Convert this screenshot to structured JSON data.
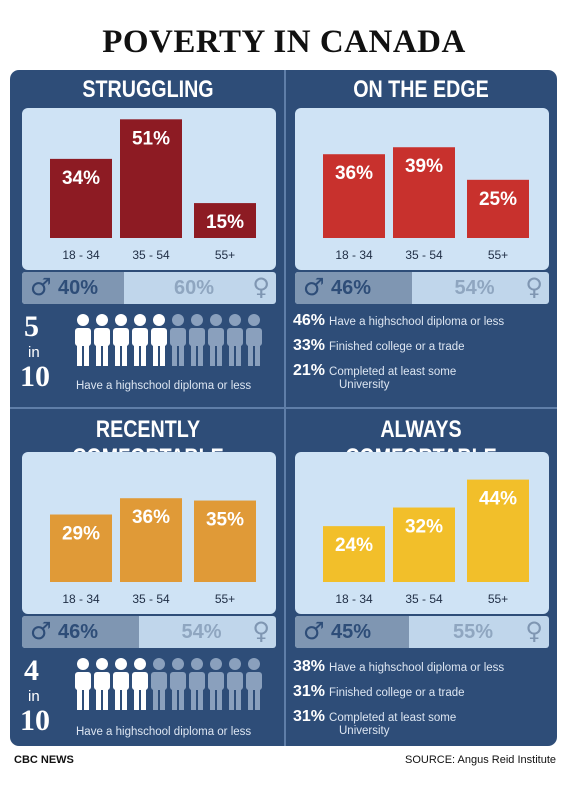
{
  "title": "POVERTY IN CANADA",
  "footer": {
    "left": "CBC NEWS",
    "right": "SOURCE: Angus Reid Institute"
  },
  "panels": [
    {
      "title": "STRUGGLING",
      "bar_color": "#8d1b23",
      "gender": {
        "male_pct": 40,
        "female_pct": 60,
        "male_label": "40%",
        "female_label": "60%"
      },
      "people": {
        "big": "5",
        "in": "in",
        "ten": "10",
        "filled": 5,
        "text": "Have a highschool diploma or less"
      }
    },
    {
      "title": "ON THE EDGE",
      "bar_color": "#c8312d",
      "gender": {
        "male_pct": 46,
        "female_pct": 54,
        "male_label": "46%",
        "female_label": "54%"
      },
      "education": [
        {
          "pct": "46%",
          "label": "Have a highschool diploma or less"
        },
        {
          "pct": "33%",
          "label": "Finished college or a trade"
        },
        {
          "pct": "21%",
          "label": "Completed at least some",
          "label2": "University"
        }
      ]
    },
    {
      "title": "RECENTLY COMFORTABLE",
      "bar_color": "#e09a37",
      "gender": {
        "male_pct": 46,
        "female_pct": 54,
        "male_label": "46%",
        "female_label": "54%"
      },
      "people": {
        "big": "4",
        "in": "in",
        "ten": "10",
        "filled": 4,
        "text": "Have a highschool diploma or less"
      }
    },
    {
      "title": "ALWAYS COMFORTABLE",
      "bar_color": "#f2bf2a",
      "gender": {
        "male_pct": 45,
        "female_pct": 55,
        "male_label": "45%",
        "female_label": "55%"
      },
      "education": [
        {
          "pct": "38%",
          "label": "Have a highschool diploma or less"
        },
        {
          "pct": "31%",
          "label": "Finished college or a trade"
        },
        {
          "pct": "31%",
          "label": "Completed at least some",
          "label2": "University"
        }
      ]
    }
  ],
  "chart_data": [
    {
      "type": "bar",
      "title": "STRUGGLING",
      "categories": [
        "18 - 34",
        "35 - 54",
        "55+"
      ],
      "values": [
        34,
        51,
        15
      ],
      "labels": [
        "34%",
        "51%",
        "15%"
      ],
      "ylim": [
        0,
        55
      ]
    },
    {
      "type": "bar",
      "title": "ON THE EDGE",
      "categories": [
        "18 - 34",
        "35 - 54",
        "55+"
      ],
      "values": [
        36,
        39,
        25
      ],
      "labels": [
        "36%",
        "39%",
        "25%"
      ],
      "ylim": [
        0,
        55
      ]
    },
    {
      "type": "bar",
      "title": "RECENTLY COMFORTABLE",
      "categories": [
        "18 - 34",
        "35 - 54",
        "55+"
      ],
      "values": [
        29,
        36,
        35
      ],
      "labels": [
        "29%",
        "36%",
        "35%"
      ],
      "ylim": [
        0,
        55
      ]
    },
    {
      "type": "bar",
      "title": "ALWAYS COMFORTABLE",
      "categories": [
        "18 - 34",
        "35 - 54",
        "55+"
      ],
      "values": [
        24,
        32,
        44
      ],
      "labels": [
        "24%",
        "32%",
        "44%"
      ],
      "ylim": [
        0,
        55
      ]
    }
  ]
}
